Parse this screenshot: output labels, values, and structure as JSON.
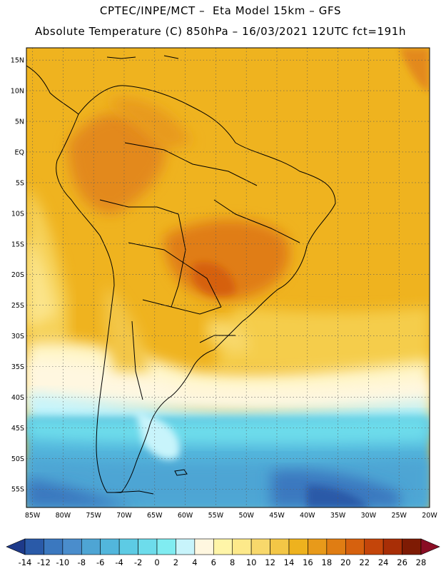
{
  "header": {
    "line1": "CPTEC/INPE/MCT –  Eta Model 15km – GFS",
    "line2": "Absolute Temperature (C) 850hPa – 16/03/2021 12UTC fct=191h"
  },
  "map": {
    "lat_labels": [
      "15N",
      "10N",
      "5N",
      "EQ",
      "5S",
      "10S",
      "15S",
      "20S",
      "25S",
      "30S",
      "35S",
      "40S",
      "45S",
      "50S",
      "55S"
    ],
    "lon_labels": [
      "85W",
      "80W",
      "75W",
      "70W",
      "65W",
      "60W",
      "55W",
      "50W",
      "45W",
      "40W",
      "35W",
      "30W",
      "25W",
      "20W"
    ],
    "lat_range": [
      17,
      -58
    ],
    "lon_range": [
      -86,
      -20
    ],
    "grid": true
  },
  "colorbar": {
    "labels": [
      "-14",
      "-12",
      "-10",
      "-8",
      "-6",
      "-4",
      "-2",
      "0",
      "2",
      "4",
      "6",
      "8",
      "10",
      "12",
      "14",
      "16",
      "18",
      "20",
      "22",
      "24",
      "26",
      "28"
    ],
    "colors": [
      "#1e3a8a",
      "#2a5aa8",
      "#3b78bf",
      "#4a8dcc",
      "#4ea5d4",
      "#52b6dc",
      "#5dcbe4",
      "#6ddceb",
      "#80ecf1",
      "#c8f4fb",
      "#fff7e0",
      "#fff5a8",
      "#fde98a",
      "#f8d86b",
      "#f3c646",
      "#eeb21e",
      "#e89a1a",
      "#e07d13",
      "#d6610e",
      "#c4450a",
      "#a82e06",
      "#7e1b04",
      "#8a0d24"
    ]
  }
}
